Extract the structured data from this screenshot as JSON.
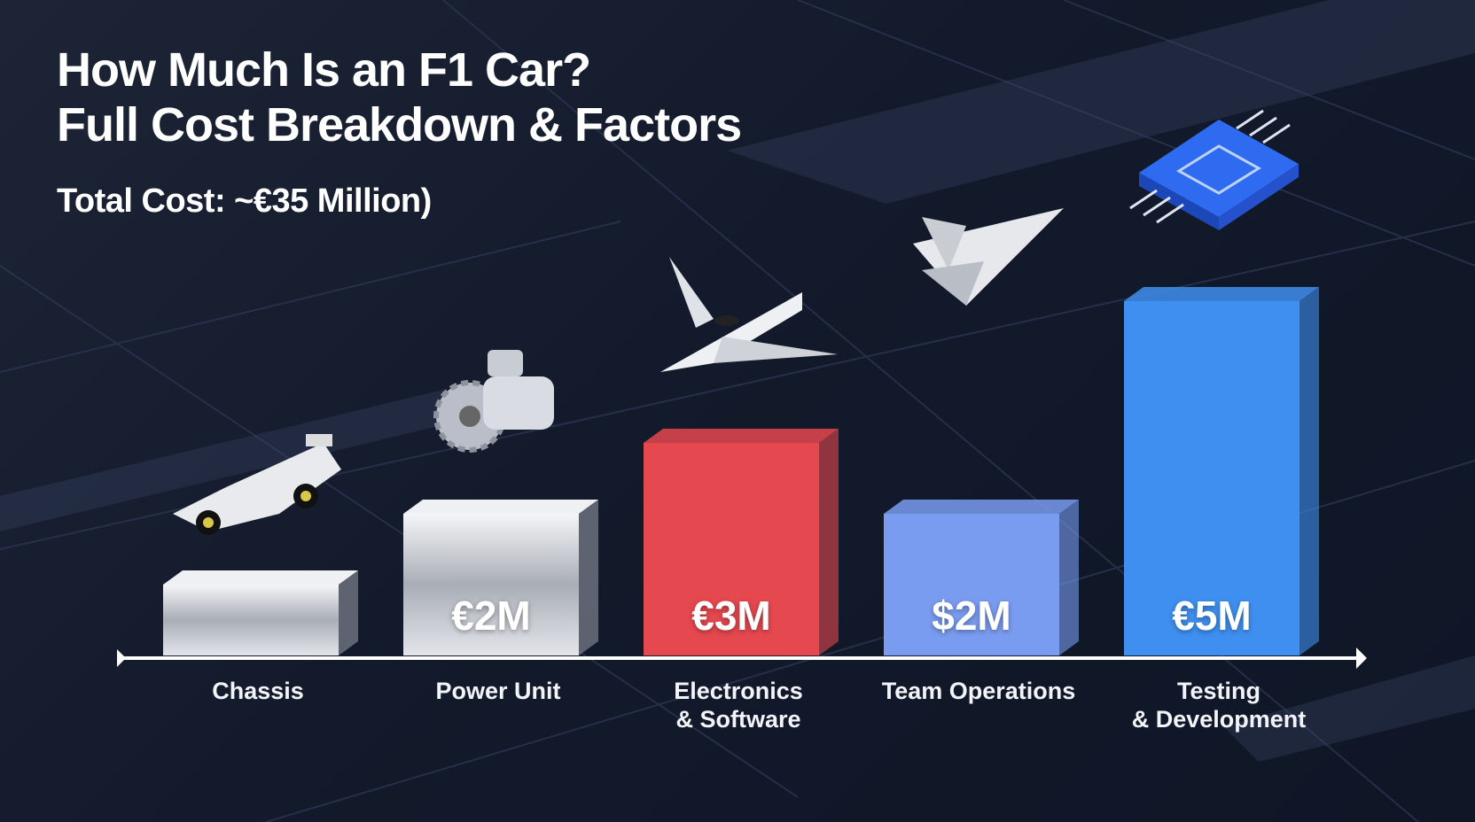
{
  "chart_data": {
    "type": "bar",
    "title": "How Much Is an F1 Car?\nFull Cost Breakdown & Factors",
    "subtitle": "Total Cost: ~€35 Million)",
    "categories": [
      "Chassis",
      "Power Unit",
      "Electronics\n& Software",
      "Team Operations",
      "Testing\n& Development"
    ],
    "values": [
      1,
      2,
      3,
      2,
      5
    ],
    "value_labels": [
      null,
      "€2M",
      "€3M",
      "$2M",
      "€5M"
    ],
    "colors": [
      "#c9ccd3",
      "#d3d6dc",
      "#e5484f",
      "#7a9cf0",
      "#3f8ff0"
    ]
  }
}
